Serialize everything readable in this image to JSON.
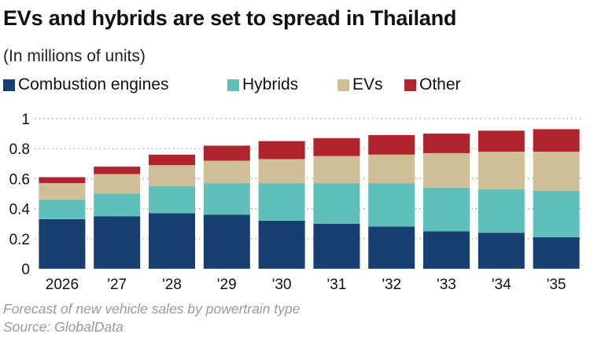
{
  "title": "EVs and hybrids are set to spread in Thailand",
  "subtitle": "(In millions of units)",
  "footer": {
    "note": "Forecast of new vehicle sales by powertrain type",
    "source": "Source: GlobalData"
  },
  "chart_data": {
    "type": "stacked-bar",
    "title": "EVs and hybrids are set to spread in Thailand",
    "subtitle": "(In millions of units)",
    "categories": [
      "2026",
      "'27",
      "'28",
      "'29",
      "'30",
      "'31",
      "'32",
      "'33",
      "'34",
      "'35"
    ],
    "series": [
      {
        "name": "Combustion engines",
        "color": "#173f72",
        "values": [
          0.33,
          0.35,
          0.37,
          0.36,
          0.32,
          0.3,
          0.28,
          0.25,
          0.24,
          0.21
        ]
      },
      {
        "name": "Hybrids",
        "color": "#5ebfbb",
        "values": [
          0.13,
          0.15,
          0.18,
          0.21,
          0.25,
          0.27,
          0.29,
          0.29,
          0.29,
          0.31
        ]
      },
      {
        "name": "EVs",
        "color": "#cfbe96",
        "values": [
          0.11,
          0.13,
          0.14,
          0.15,
          0.16,
          0.18,
          0.19,
          0.23,
          0.25,
          0.26
        ]
      },
      {
        "name": "Other",
        "color": "#b0252d",
        "values": [
          0.04,
          0.05,
          0.07,
          0.1,
          0.12,
          0.12,
          0.13,
          0.13,
          0.14,
          0.15
        ]
      }
    ],
    "yticks": [
      0,
      0.2,
      0.4,
      0.6,
      0.8,
      1
    ],
    "ytick_labels": [
      "0",
      "0.2",
      "0.4",
      "0.6",
      "0.8",
      "1"
    ],
    "ylim": [
      0,
      1
    ],
    "xlabel": "",
    "ylabel": "",
    "grid": true,
    "legend_position": "top-left"
  }
}
